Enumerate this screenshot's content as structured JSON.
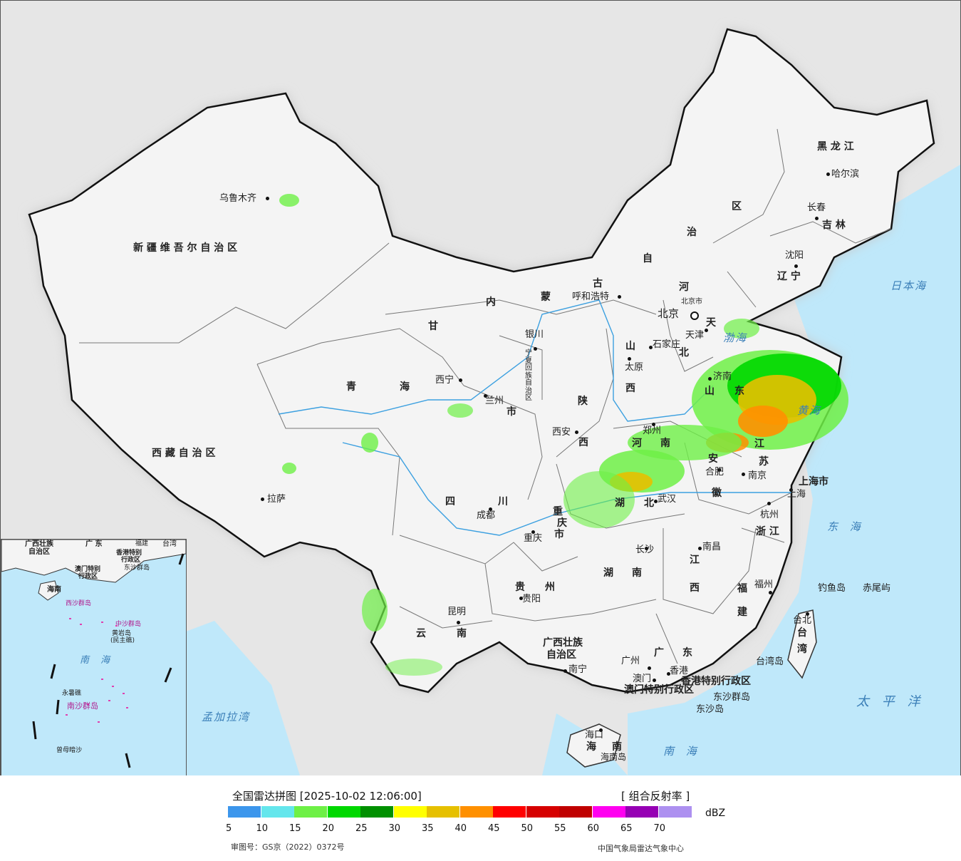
{
  "legend": {
    "title": "全国雷达拼图 [2025-10-02 12:06:00]",
    "product": "[ 组合反射率 ]",
    "unit": "dBZ",
    "ticks": [
      "5",
      "10",
      "15",
      "20",
      "25",
      "30",
      "35",
      "40",
      "45",
      "50",
      "55",
      "60",
      "65",
      "70"
    ],
    "colors": [
      "#3c96ec",
      "#64e6ec",
      "#6ef046",
      "#00d800",
      "#009000",
      "#ffff00",
      "#e6c000",
      "#ff9000",
      "#ff0000",
      "#d60000",
      "#c00000",
      "#ff00f0",
      "#9600b4",
      "#ad90f0"
    ]
  },
  "footer": {
    "approval": "审图号：GS京（2022）0372号",
    "agency": "中国气象局雷达气象中心"
  },
  "provinces": {
    "xinjiang": "新 疆 维 吾 尔 自 治 区",
    "xizang": "西 藏 自 治 区",
    "qinghai_1": "青",
    "qinghai_2": "海",
    "gansu": "甘",
    "sichuan_1": "四",
    "sichuan_2": "川",
    "yunnan_1": "云",
    "yunnan_2": "南",
    "guizhou_1": "贵",
    "guizhou_2": "州",
    "guangxi": "广西壮族",
    "guangxi_2": "自治区",
    "guangdong_1": "广",
    "guangdong_2": "东",
    "hunan_1": "湖",
    "hunan_2": "南",
    "hubei_1": "湖",
    "hubei_2": "北",
    "jiangxi_1": "江",
    "jiangxi_2": "西",
    "fujian_1": "福",
    "fujian_2": "建",
    "zhejiang": "浙 江",
    "anhui_1": "安",
    "anhui_2": "徽",
    "jiangsu_1": "江",
    "jiangsu_2": "苏",
    "shandong_1": "山",
    "shandong_2": "东",
    "henan_1": "河",
    "henan_2": "南",
    "shanxi_1": "山",
    "shanxi_2": "西",
    "shaanxi_1": "陕",
    "shaanxi_2": "西",
    "hebei_1": "河",
    "hebei_2": "北",
    "neimenggu_1": "内",
    "neimenggu_2": "蒙",
    "neimenggu_3": "古",
    "neimenggu_4": "自",
    "neimenggu_5": "治",
    "neimenggu_6": "区",
    "heilongjiang": "黑 龙 江",
    "jilin": "吉 林",
    "liaoning": "辽 宁",
    "chongqing_1": "重",
    "chongqing_2": "庆",
    "chongqing_3": "市",
    "shanghai": "上海市",
    "tianjin": "天",
    "beijing_city": "北京市",
    "ningxia": "宁夏回族自治区",
    "hainan_1": "海",
    "hainan_2": "南",
    "hongkong": "香港特别行政区",
    "macao": "澳门特别行政区",
    "taiwan_1": "台",
    "taiwan_2": "湾",
    "gansu_city": "市"
  },
  "cities": {
    "urumqi": "乌鲁木齐",
    "lhasa": "拉萨",
    "xining": "西宁",
    "lanzhou": "兰州",
    "yinchuan": "银川",
    "hohhot": "呼和浩特",
    "beijing": "北京",
    "tianjin": "天津",
    "shijiazhuang": "石家庄",
    "taiyuan": "太原",
    "xian": "西安",
    "zhengzhou": "郑州",
    "jinan": "济南",
    "chengdu": "成都",
    "chongqing": "重庆",
    "wuhan": "武汉",
    "hefei": "合肥",
    "nanjing": "南京",
    "shanghai": "上海",
    "hangzhou": "杭州",
    "changsha": "长沙",
    "nanchang": "南昌",
    "fuzhou": "福州",
    "guiyang": "贵阳",
    "kunming": "昆明",
    "nanning": "南宁",
    "guangzhou": "广州",
    "hongkong": "香港",
    "macao": "澳门",
    "haikou": "海口",
    "taibei": "台北",
    "shenyang": "沈阳",
    "changchun": "长春",
    "harbin": "哈尔滨"
  },
  "seas": {
    "japan": "日本海",
    "bohai": "渤海",
    "huanghai": "黄海",
    "donghai": "东 海",
    "pacific": "太 平 洋",
    "nanhai": "南 海",
    "bengal": "孟加拉湾"
  },
  "islands": {
    "diaoyu": "钓鱼岛",
    "chiwei": "赤尾屿",
    "taiwan_island": "台湾岛",
    "dongsha_qundao": "东沙群岛",
    "dongsha_dao": "东沙岛",
    "hainan_island": "海南岛"
  },
  "inset": {
    "guangxi": "广西壮族",
    "guangxi_2": "自治区",
    "guangdong": "广 东",
    "fujian": "福建",
    "taiwan": "台湾",
    "hk": "香港特别",
    "hk_2": "行政区",
    "macao": "澳门特别",
    "macao_2": "行政区",
    "dongsha": "东沙群岛",
    "hainan": "海南",
    "xisha": "西沙群岛",
    "zhongsha": "中沙群岛",
    "huangyan": "黄岩岛",
    "huangyan_2": "(民主礁)",
    "nanhai": "南 海",
    "nansha": "南沙群岛",
    "yongshu": "永暑礁",
    "zengmu": "曾母暗沙"
  }
}
